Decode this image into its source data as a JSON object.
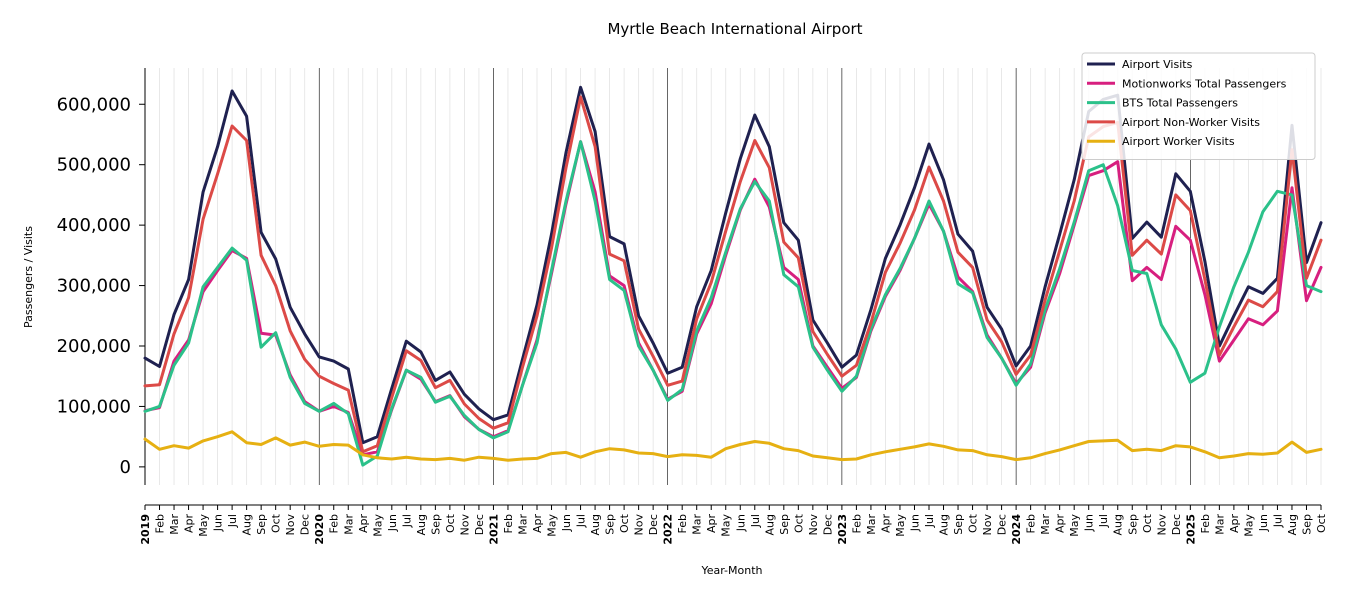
{
  "chart_data": {
    "type": "line",
    "title": "Myrtle Beach International Airport",
    "xlabel": "Year-Month",
    "ylabel": "Passengers / Visits",
    "ylim": [
      -30000,
      660000
    ],
    "yticks": [
      0,
      100000,
      200000,
      300000,
      400000,
      500000,
      600000
    ],
    "ytick_labels": [
      "0",
      "100,000",
      "200,000",
      "300,000",
      "400,000",
      "500,000",
      "600,000"
    ],
    "year_labels": [
      "2019",
      "2020",
      "2021",
      "2022",
      "2023",
      "2024",
      "2025"
    ],
    "x": [
      "2019",
      "Feb",
      "Mar",
      "Apr",
      "May",
      "Jun",
      "Jul",
      "Aug",
      "Sep",
      "Oct",
      "Nov",
      "Dec",
      "2020",
      "Feb",
      "Mar",
      "Apr",
      "May",
      "Jun",
      "Jul",
      "Aug",
      "Sep",
      "Oct",
      "Nov",
      "Dec",
      "2021",
      "Feb",
      "Mar",
      "Apr",
      "May",
      "Jun",
      "Jul",
      "Aug",
      "Sep",
      "Oct",
      "Nov",
      "Dec",
      "2022",
      "Feb",
      "Mar",
      "Apr",
      "May",
      "Jun",
      "Jul",
      "Aug",
      "Sep",
      "Oct",
      "Nov",
      "Dec",
      "2023",
      "Feb",
      "Mar",
      "Apr",
      "May",
      "Jun",
      "Jul",
      "Aug",
      "Sep",
      "Oct",
      "Nov",
      "Dec",
      "2024",
      "Feb",
      "Mar",
      "Apr",
      "May",
      "Jun",
      "Jul",
      "Aug",
      "Sep",
      "Oct",
      "Nov",
      "Dec",
      "2025",
      "Feb",
      "Mar",
      "Apr",
      "May",
      "Jun",
      "Jul",
      "Aug",
      "Sep",
      "Oct"
    ],
    "grid": "vertical",
    "legend_position": "top-right",
    "series": [
      {
        "name": "Airport Visits",
        "color": "#1f2150",
        "values": [
          180000,
          166000,
          252000,
          310000,
          455000,
          530000,
          622000,
          580000,
          388000,
          344000,
          264000,
          220000,
          182000,
          175000,
          162000,
          40000,
          50000,
          130000,
          208000,
          190000,
          143000,
          157000,
          120000,
          96000,
          78000,
          86000,
          178000,
          268000,
          385000,
          520000,
          628000,
          555000,
          381000,
          369000,
          250000,
          205000,
          155000,
          165000,
          265000,
          325000,
          420000,
          510000,
          582000,
          530000,
          404000,
          375000,
          243000,
          205000,
          165000,
          185000,
          260000,
          345000,
          400000,
          462000,
          534000,
          475000,
          385000,
          357000,
          264000,
          228000,
          167000,
          200000,
          298000,
          385000,
          475000,
          588000,
          608000,
          615000,
          378000,
          405000,
          380000,
          485000,
          456000,
          340000,
          200000,
          250000,
          298000,
          287000,
          312000,
          565000,
          338000,
          404000
        ]
      },
      {
        "name": "Motionworks Total Passengers",
        "color": "#d71f7f",
        "values": [
          93000,
          98000,
          175000,
          210000,
          290000,
          325000,
          358000,
          345000,
          221000,
          218000,
          152000,
          108000,
          92000,
          100000,
          90000,
          20000,
          25000,
          95000,
          160000,
          145000,
          108000,
          118000,
          83000,
          62000,
          50000,
          60000,
          135000,
          210000,
          320000,
          435000,
          538000,
          455000,
          316000,
          300000,
          205000,
          160000,
          112000,
          125000,
          220000,
          270000,
          350000,
          425000,
          476000,
          430000,
          330000,
          310000,
          200000,
          165000,
          130000,
          148000,
          225000,
          282000,
          325000,
          378000,
          435000,
          390000,
          314000,
          290000,
          218000,
          180000,
          138000,
          165000,
          255000,
          320000,
          400000,
          482000,
          490000,
          505000,
          308000,
          330000,
          310000,
          398000,
          375000,
          285000,
          175000,
          210000,
          245000,
          235000,
          258000,
          462000,
          275000,
          330000
        ]
      },
      {
        "name": "BTS Total Passengers",
        "color": "#2bc18a",
        "values": [
          92000,
          100000,
          168000,
          205000,
          298000,
          330000,
          362000,
          342000,
          198000,
          222000,
          148000,
          105000,
          92000,
          105000,
          88000,
          3000,
          18000,
          97000,
          160000,
          148000,
          107000,
          117000,
          85000,
          62000,
          48000,
          58000,
          135000,
          205000,
          325000,
          440000,
          538000,
          440000,
          310000,
          292000,
          200000,
          160000,
          110000,
          128000,
          225000,
          280000,
          355000,
          427000,
          472000,
          440000,
          318000,
          298000,
          198000,
          160000,
          125000,
          150000,
          228000,
          285000,
          328000,
          378000,
          440000,
          390000,
          303000,
          288000,
          214000,
          180000,
          135000,
          170000,
          260000,
          328000,
          405000,
          490000,
          500000,
          432000,
          325000,
          320000,
          235000,
          195000,
          140000,
          155000,
          232000,
          298000,
          355000,
          422000,
          456000,
          450000,
          300000,
          290000
        ]
      },
      {
        "name": "Airport Non-Worker Visits",
        "color": "#dc4a47",
        "values": [
          134000,
          136000,
          220000,
          280000,
          410000,
          485000,
          564000,
          540000,
          350000,
          300000,
          225000,
          178000,
          150000,
          138000,
          127000,
          25000,
          35000,
          115000,
          192000,
          176000,
          131000,
          143000,
          104000,
          80000,
          64000,
          73000,
          165000,
          250000,
          362000,
          495000,
          612000,
          530000,
          352000,
          341000,
          228000,
          183000,
          135000,
          142000,
          245000,
          305000,
          390000,
          472000,
          540000,
          495000,
          372000,
          346000,
          224000,
          186000,
          150000,
          168000,
          238000,
          322000,
          370000,
          425000,
          496000,
          440000,
          355000,
          330000,
          243000,
          207000,
          153000,
          185000,
          276000,
          358000,
          440000,
          546000,
          563000,
          570000,
          350000,
          375000,
          352000,
          450000,
          424000,
          310000,
          185000,
          232000,
          276000,
          265000,
          290000,
          525000,
          312000,
          375000
        ]
      },
      {
        "name": "Airport Worker Visits",
        "color": "#e6b012",
        "values": [
          46000,
          29000,
          35000,
          31000,
          43000,
          50000,
          58000,
          40000,
          37000,
          48000,
          36000,
          41000,
          34000,
          37000,
          36000,
          20000,
          15000,
          13000,
          16000,
          13000,
          12000,
          14000,
          11000,
          16000,
          14000,
          11000,
          13000,
          14000,
          22000,
          24000,
          16000,
          25000,
          30000,
          28000,
          23000,
          22000,
          17000,
          20000,
          19000,
          16000,
          30000,
          37000,
          42000,
          39000,
          30000,
          27000,
          18000,
          15000,
          12000,
          13000,
          20000,
          25000,
          29000,
          33000,
          38000,
          34000,
          28000,
          27000,
          20000,
          17000,
          12000,
          15000,
          22000,
          28000,
          35000,
          42000,
          43000,
          44000,
          27000,
          29000,
          27000,
          35000,
          33000,
          25000,
          15000,
          18000,
          22000,
          21000,
          23000,
          41000,
          24000,
          29000
        ]
      }
    ]
  }
}
